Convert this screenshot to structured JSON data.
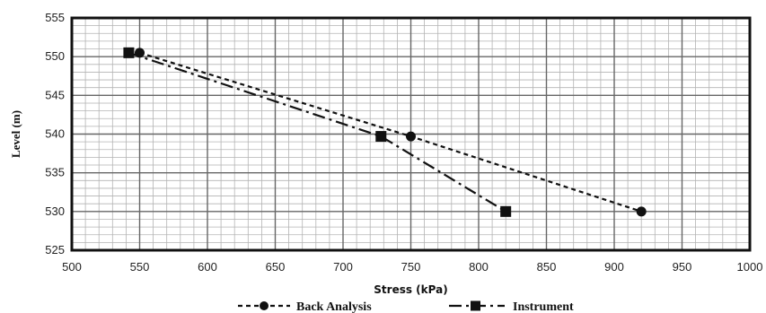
{
  "chart_data": {
    "type": "line",
    "title": "",
    "xlabel": "Stress (kPa)",
    "ylabel": "Level (m)",
    "xlim": [
      500,
      1000
    ],
    "ylim": [
      525,
      555
    ],
    "xticks": [
      500,
      550,
      600,
      650,
      700,
      750,
      800,
      850,
      900,
      950,
      1000
    ],
    "yticks": [
      525,
      530,
      535,
      540,
      545,
      550,
      555
    ],
    "grid": true,
    "legend_position": "bottom",
    "series": [
      {
        "name": "Back Analysis",
        "marker": "circle",
        "line_style": "dashed",
        "color": "#111111",
        "points": [
          {
            "x": 550,
            "y": 550.5
          },
          {
            "x": 750,
            "y": 539.7
          },
          {
            "x": 920,
            "y": 530
          }
        ]
      },
      {
        "name": "Instrument",
        "marker": "square",
        "line_style": "dash-dot",
        "color": "#111111",
        "points": [
          {
            "x": 542,
            "y": 550.5
          },
          {
            "x": 728,
            "y": 539.7
          },
          {
            "x": 820,
            "y": 530
          }
        ]
      }
    ]
  }
}
